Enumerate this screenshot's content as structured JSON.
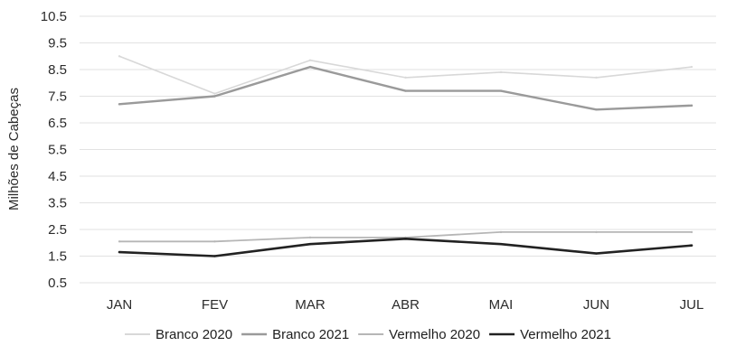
{
  "chart_data": {
    "type": "line",
    "ylabel": "Milhões de Cabeças",
    "xlabel": "",
    "categories": [
      "JAN",
      "FEV",
      "MAR",
      "ABR",
      "MAI",
      "JUN",
      "JUL"
    ],
    "yticks": [
      "10.5",
      "9.5",
      "8.5",
      "7.5",
      "6.5",
      "5.5",
      "4.5",
      "3.5",
      "2.5",
      "1.5",
      "0.5"
    ],
    "ylim": [
      0.5,
      10.5
    ],
    "grid": true,
    "legend_position": "bottom",
    "series": [
      {
        "name": "Branco 2020",
        "values": [
          9.0,
          7.6,
          8.85,
          8.2,
          8.4,
          8.2,
          8.6
        ],
        "color": "#d8d8d8",
        "width": 1.6
      },
      {
        "name": "Branco 2021",
        "values": [
          7.2,
          7.5,
          8.6,
          7.7,
          7.7,
          7.0,
          7.15
        ],
        "color": "#9a9a9a",
        "width": 2.4
      },
      {
        "name": "Vermelho 2020",
        "values": [
          2.05,
          2.05,
          2.2,
          2.2,
          2.4,
          2.4,
          2.4
        ],
        "color": "#b6b6b6",
        "width": 1.8
      },
      {
        "name": "Vermelho 2021",
        "values": [
          1.65,
          1.5,
          1.95,
          2.15,
          1.95,
          1.6,
          1.9
        ],
        "color": "#222222",
        "width": 2.6
      }
    ]
  }
}
